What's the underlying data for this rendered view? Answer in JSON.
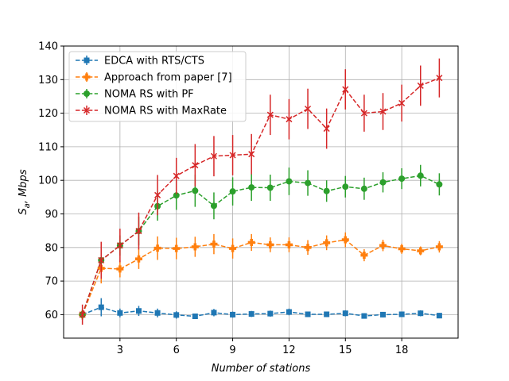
{
  "chart_data": {
    "type": "line",
    "title": "",
    "xlabel": "Number of stations",
    "ylabel_parts": [
      "S",
      "a",
      ", Mbps"
    ],
    "xlim": [
      0,
      21
    ],
    "ylim": [
      53,
      140
    ],
    "xticks": [
      3,
      6,
      9,
      12,
      15,
      18
    ],
    "yticks": [
      60,
      70,
      80,
      90,
      100,
      110,
      120,
      130,
      140
    ],
    "grid": true,
    "legend_position": "top-left",
    "x": [
      1,
      2,
      3,
      4,
      5,
      6,
      7,
      8,
      9,
      10,
      11,
      12,
      13,
      14,
      15,
      16,
      17,
      18,
      19,
      20
    ],
    "series": [
      {
        "name": "EDCA with RTS/CTS",
        "color": "#1f77b4",
        "marker": "square",
        "values": [
          60.0,
          62.2,
          60.5,
          61.1,
          60.5,
          59.9,
          59.5,
          60.6,
          60.0,
          60.2,
          60.3,
          60.8,
          60.1,
          60.1,
          60.4,
          59.6,
          60.0,
          60.1,
          60.4,
          59.7
        ],
        "errors": [
          1.5,
          2.7,
          1.3,
          1.5,
          1.3,
          1.1,
          0.7,
          1.1,
          0.9,
          0.9,
          0.9,
          1.0,
          0.8,
          0.8,
          0.9,
          0.8,
          0.8,
          0.8,
          0.9,
          0.8
        ]
      },
      {
        "name": "Approach from paper [7]",
        "color": "#ff7f0e",
        "marker": "plus",
        "values": [
          60.0,
          73.8,
          73.6,
          76.6,
          79.8,
          79.7,
          80.2,
          81.0,
          79.7,
          81.5,
          80.8,
          80.8,
          80.0,
          81.4,
          82.3,
          77.7,
          80.6,
          79.6,
          79.0,
          80.2
        ],
        "errors": [
          1.5,
          4.5,
          2.5,
          3.0,
          3.5,
          3.2,
          3.0,
          3.0,
          3.0,
          2.5,
          2.2,
          2.2,
          2.2,
          2.2,
          2.2,
          1.8,
          1.7,
          1.5,
          1.3,
          1.7
        ]
      },
      {
        "name": "NOMA RS with PF",
        "color": "#2ca02c",
        "marker": "circle",
        "values": [
          60.0,
          76.2,
          80.6,
          84.9,
          92.3,
          95.5,
          96.9,
          92.4,
          96.7,
          97.9,
          97.8,
          99.7,
          99.2,
          96.8,
          98.1,
          97.5,
          99.4,
          100.5,
          101.4,
          98.8
        ],
        "errors": [
          1.5,
          2.3,
          3.0,
          4.3,
          4.3,
          4.3,
          4.8,
          4.0,
          4.2,
          4.0,
          3.9,
          4.1,
          3.8,
          3.2,
          3.2,
          3.3,
          3.0,
          3.1,
          3.2,
          3.3
        ]
      },
      {
        "name": "NOMA RS with MaxRate",
        "color": "#d62728",
        "marker": "x",
        "values": [
          60.0,
          76.2,
          80.6,
          84.9,
          95.6,
          101.3,
          104.5,
          107.2,
          107.5,
          107.8,
          119.5,
          118.2,
          121.3,
          115.4,
          127.1,
          120.0,
          120.5,
          123.0,
          128.2,
          130.5
        ],
        "errors": [
          3.0,
          5.5,
          5.0,
          5.5,
          6.0,
          5.4,
          6.3,
          6.0,
          6.0,
          6.0,
          6.0,
          6.0,
          6.0,
          6.0,
          6.0,
          5.5,
          5.5,
          5.5,
          6.0,
          5.8
        ]
      }
    ]
  }
}
